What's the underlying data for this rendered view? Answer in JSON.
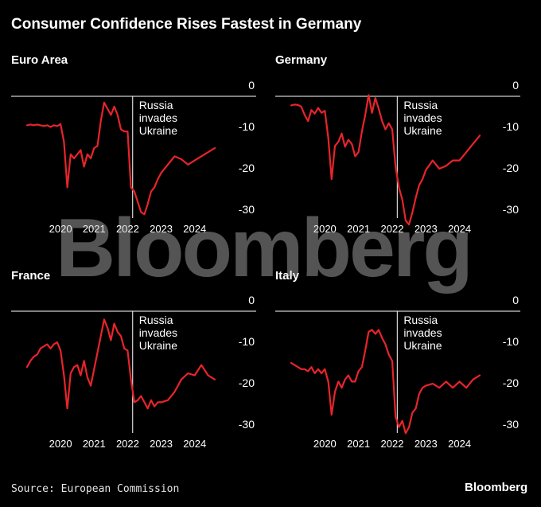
{
  "header": {
    "title": "Consumer Confidence Rises Fastest in Germany"
  },
  "footer": {
    "source": "Source: European Commission",
    "logo": "Bloomberg"
  },
  "watermark": "Bloomberg",
  "colors": {
    "line": "#e8242b",
    "background": "#000000",
    "grid": "#ffffff",
    "text": "#ffffff"
  },
  "chart_data": [
    {
      "type": "line",
      "title": "Euro Area",
      "x": [
        2019.0,
        2019.1,
        2019.2,
        2019.3,
        2019.4,
        2019.5,
        2019.6,
        2019.7,
        2019.8,
        2019.9,
        2020.0,
        2020.1,
        2020.2,
        2020.3,
        2020.4,
        2020.5,
        2020.6,
        2020.7,
        2020.8,
        2020.9,
        2021.0,
        2021.1,
        2021.2,
        2021.3,
        2021.4,
        2021.5,
        2021.6,
        2021.7,
        2021.8,
        2021.9,
        2022.0,
        2022.1,
        2022.2,
        2022.3,
        2022.4,
        2022.5,
        2022.6,
        2022.7,
        2022.8,
        2022.9,
        2023.0,
        2023.2,
        2023.4,
        2023.6,
        2023.8,
        2024.0,
        2024.2,
        2024.4,
        2024.6
      ],
      "values": [
        -7,
        -6.8,
        -7,
        -6.8,
        -7,
        -7.2,
        -7,
        -7.4,
        -7,
        -7.2,
        -6.7,
        -11,
        -22,
        -14,
        -15,
        -14,
        -13,
        -17,
        -14,
        -15,
        -12.5,
        -12,
        -6,
        -1.5,
        -3,
        -4.5,
        -2.5,
        -4.5,
        -8,
        -8.5,
        -8.5,
        -22,
        -23,
        -25.5,
        -28,
        -28.5,
        -26,
        -23,
        -22,
        -20,
        -18.5,
        -16.5,
        -14.5,
        -15.2,
        -16.5,
        -15.5,
        -14.5,
        -13.5,
        -12.5
      ],
      "ylim": [
        -31.5,
        1.5
      ],
      "yticks": [
        0,
        -10,
        -20,
        -30
      ],
      "xticks": [
        2020,
        2021,
        2022,
        2023,
        2024
      ],
      "annotation": {
        "x": 2022.15,
        "lines": [
          "Russia",
          "invades",
          "Ukraine"
        ]
      }
    },
    {
      "type": "line",
      "title": "Germany",
      "x": [
        2019.0,
        2019.1,
        2019.2,
        2019.3,
        2019.4,
        2019.5,
        2019.6,
        2019.7,
        2019.8,
        2019.9,
        2020.0,
        2020.1,
        2020.2,
        2020.3,
        2020.4,
        2020.5,
        2020.6,
        2020.7,
        2020.8,
        2020.9,
        2021.0,
        2021.1,
        2021.2,
        2021.3,
        2021.4,
        2021.5,
        2021.6,
        2021.7,
        2021.8,
        2021.9,
        2022.0,
        2022.1,
        2022.2,
        2022.3,
        2022.4,
        2022.5,
        2022.6,
        2022.7,
        2022.8,
        2022.9,
        2023.0,
        2023.2,
        2023.4,
        2023.6,
        2023.8,
        2024.0,
        2024.2,
        2024.4,
        2024.6
      ],
      "values": [
        -2.2,
        -2,
        -2.1,
        -2.5,
        -4.5,
        -6,
        -3.3,
        -4.2,
        -2.8,
        -4,
        -3.5,
        -10,
        -20,
        -12,
        -11,
        -9,
        -12.2,
        -10.5,
        -11.5,
        -14.5,
        -13.5,
        -8.5,
        -4.5,
        0.3,
        -4,
        -0.4,
        -3,
        -6,
        -8,
        -6.5,
        -8,
        -17,
        -22,
        -25,
        -30,
        -31,
        -28,
        -24.5,
        -21.5,
        -20,
        -17.8,
        -15.5,
        -17.5,
        -16.8,
        -15.5,
        -15.5,
        -13.5,
        -11.5,
        -9.5
      ],
      "ylim": [
        -31.5,
        1.5
      ],
      "yticks": [
        0,
        -10,
        -20,
        -30
      ],
      "xticks": [
        2020,
        2021,
        2022,
        2023,
        2024
      ],
      "annotation": {
        "x": 2022.15,
        "lines": [
          "Russia",
          "invades",
          "Ukraine"
        ]
      }
    },
    {
      "type": "line",
      "title": "France",
      "x": [
        2019.0,
        2019.1,
        2019.2,
        2019.3,
        2019.4,
        2019.5,
        2019.6,
        2019.7,
        2019.8,
        2019.9,
        2020.0,
        2020.1,
        2020.2,
        2020.3,
        2020.4,
        2020.5,
        2020.6,
        2020.7,
        2020.8,
        2020.9,
        2021.0,
        2021.1,
        2021.2,
        2021.3,
        2021.4,
        2021.5,
        2021.6,
        2021.7,
        2021.8,
        2021.9,
        2022.0,
        2022.1,
        2022.2,
        2022.3,
        2022.4,
        2022.5,
        2022.6,
        2022.7,
        2022.8,
        2022.9,
        2023.0,
        2023.2,
        2023.4,
        2023.6,
        2023.8,
        2024.0,
        2024.2,
        2024.4,
        2024.6
      ],
      "values": [
        -13.5,
        -12,
        -11,
        -10.5,
        -9,
        -8.5,
        -8,
        -9,
        -8,
        -7.5,
        -9.5,
        -15.5,
        -23.5,
        -15,
        -13.5,
        -13,
        -15.5,
        -12,
        -16,
        -18,
        -14,
        -10,
        -6,
        -2,
        -4,
        -7,
        -3,
        -5,
        -6,
        -9,
        -9.5,
        -16.5,
        -22,
        -21.5,
        -20.5,
        -22,
        -23.5,
        -21.5,
        -23,
        -22,
        -22,
        -21.5,
        -19.5,
        -16.5,
        -15,
        -15.5,
        -13,
        -15.5,
        -16.5
      ],
      "ylim": [
        -31.5,
        1.5
      ],
      "yticks": [
        0,
        -10,
        -20,
        -30
      ],
      "xticks": [
        2020,
        2021,
        2022,
        2023,
        2024
      ],
      "annotation": {
        "x": 2022.15,
        "lines": [
          "Russia",
          "invades",
          "Ukraine"
        ]
      }
    },
    {
      "type": "line",
      "title": "Italy",
      "x": [
        2019.0,
        2019.1,
        2019.2,
        2019.3,
        2019.4,
        2019.5,
        2019.6,
        2019.7,
        2019.8,
        2019.9,
        2020.0,
        2020.1,
        2020.2,
        2020.3,
        2020.4,
        2020.5,
        2020.6,
        2020.7,
        2020.8,
        2020.9,
        2021.0,
        2021.1,
        2021.2,
        2021.3,
        2021.4,
        2021.5,
        2021.6,
        2021.7,
        2021.8,
        2021.9,
        2022.0,
        2022.1,
        2022.2,
        2022.3,
        2022.4,
        2022.5,
        2022.6,
        2022.7,
        2022.8,
        2022.9,
        2023.0,
        2023.2,
        2023.4,
        2023.6,
        2023.8,
        2024.0,
        2024.2,
        2024.4,
        2024.6
      ],
      "values": [
        -12.5,
        -13,
        -13.5,
        -14,
        -14,
        -14.5,
        -13.5,
        -15,
        -14,
        -15,
        -14,
        -17,
        -25,
        -19.5,
        -17,
        -18.5,
        -16.5,
        -15.5,
        -17,
        -17,
        -14.5,
        -13.5,
        -9.5,
        -5,
        -4.5,
        -5.5,
        -4.5,
        -6.5,
        -8,
        -10.5,
        -12,
        -25.5,
        -28,
        -26.5,
        -29.5,
        -28,
        -24.5,
        -23.5,
        -20,
        -18.5,
        -18,
        -17.5,
        -18.5,
        -17,
        -18.5,
        -17,
        -18.5,
        -16.5,
        -15.5
      ],
      "ylim": [
        -31.5,
        1.5
      ],
      "yticks": [
        0,
        -10,
        -20,
        -30
      ],
      "xticks": [
        2020,
        2021,
        2022,
        2023,
        2024
      ],
      "annotation": {
        "x": 2022.15,
        "lines": [
          "Russia",
          "invades",
          "Ukraine"
        ]
      }
    }
  ]
}
